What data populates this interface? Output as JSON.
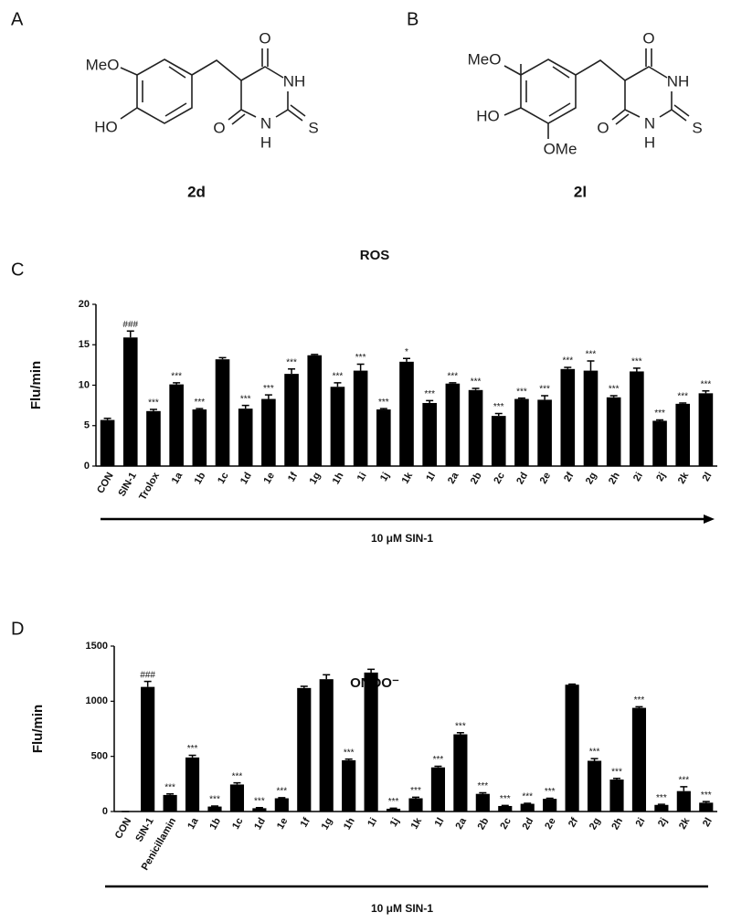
{
  "panels": [
    "A",
    "B",
    "C",
    "D"
  ],
  "structures": [
    {
      "label": "2d",
      "atoms": [
        "MeO",
        "HO",
        "O",
        "NH",
        "O",
        "N",
        "H",
        "S"
      ]
    },
    {
      "label": "2l",
      "atoms": [
        "MeO",
        "HO",
        "OMe",
        "O",
        "NH",
        "O",
        "N",
        "H",
        "S"
      ]
    }
  ],
  "chart_data": [
    {
      "type": "bar",
      "title": "ROS",
      "ylabel": "Flu/min",
      "note": "10 μM SIN-1",
      "categories": [
        "CON",
        "SIN-1",
        "Trolox",
        "1a",
        "1b",
        "1c",
        "1d",
        "1e",
        "1f",
        "1g",
        "1h",
        "1i",
        "1j",
        "1k",
        "1l",
        "2a",
        "2b",
        "2c",
        "2d",
        "2e",
        "2f",
        "2g",
        "2h",
        "2i",
        "2j",
        "2k",
        "2l"
      ],
      "values": [
        5.7,
        15.9,
        6.8,
        10.1,
        7.0,
        13.2,
        7.1,
        8.3,
        11.4,
        13.7,
        9.8,
        11.8,
        7.0,
        12.9,
        7.8,
        10.2,
        9.4,
        6.2,
        8.3,
        8.2,
        12.0,
        11.8,
        8.5,
        11.7,
        5.6,
        7.7,
        9.0
      ],
      "errors": [
        0.2,
        0.8,
        0.2,
        0.2,
        0.1,
        0.2,
        0.4,
        0.5,
        0.6,
        0.1,
        0.5,
        0.8,
        0.1,
        0.4,
        0.3,
        0.1,
        0.2,
        0.3,
        0.1,
        0.5,
        0.2,
        1.2,
        0.2,
        0.4,
        0.1,
        0.1,
        0.3
      ],
      "annotations": [
        null,
        "###",
        "***",
        "***",
        "***",
        null,
        "***",
        "***",
        "***",
        null,
        "***",
        "***",
        "***",
        "*",
        "***",
        "***",
        "***",
        "***",
        "***",
        "***",
        "***",
        "***",
        "***",
        "***",
        "***",
        "***",
        "***"
      ],
      "color": "#000000",
      "ylim": [
        0,
        20
      ],
      "yticks": [
        0,
        5,
        10,
        15,
        20
      ]
    },
    {
      "type": "bar",
      "title": "ONOO⁻",
      "ylabel": "Flu/min",
      "note": "10 μM SIN-1",
      "categories": [
        "CON",
        "SIN-1",
        "Penicillamin",
        "1a",
        "1b",
        "1c",
        "1d",
        "1e",
        "1f",
        "1g",
        "1h",
        "1i",
        "1j",
        "1k",
        "1l",
        "2a",
        "2b",
        "2c",
        "2d",
        "2e",
        "2f",
        "2g",
        "2h",
        "2i",
        "2j",
        "2k",
        "2l"
      ],
      "values": [
        0,
        1130,
        150,
        490,
        45,
        245,
        30,
        120,
        1120,
        1200,
        465,
        1260,
        25,
        120,
        400,
        700,
        160,
        50,
        70,
        115,
        1150,
        460,
        290,
        940,
        60,
        185,
        80
      ],
      "errors": [
        0,
        50,
        10,
        20,
        5,
        15,
        5,
        5,
        15,
        40,
        10,
        30,
        5,
        10,
        10,
        15,
        10,
        5,
        5,
        5,
        5,
        20,
        10,
        10,
        5,
        40,
        10
      ],
      "annotations": [
        null,
        "###",
        "***",
        "***",
        "***",
        "***",
        "***",
        "***",
        null,
        null,
        "***",
        null,
        "***",
        "***",
        "***",
        "***",
        "***",
        "***",
        "***",
        "***",
        null,
        "***",
        "***",
        "***",
        "***",
        "***",
        "***"
      ],
      "color": "#000000",
      "ylim": [
        0,
        1500
      ],
      "yticks": [
        0,
        500,
        1000,
        1500
      ]
    }
  ]
}
